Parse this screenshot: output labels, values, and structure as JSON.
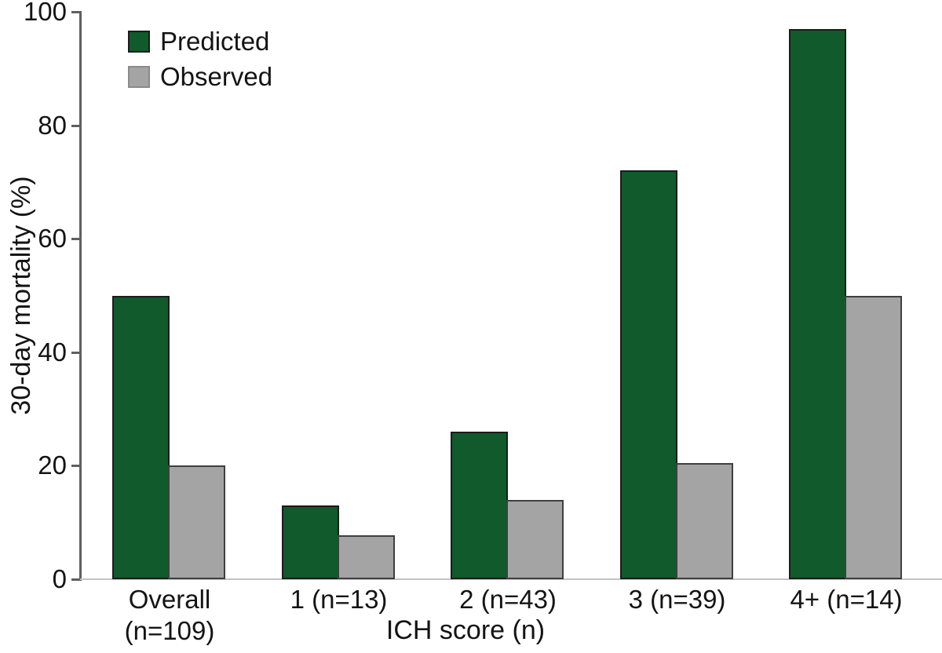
{
  "chart_data": {
    "type": "bar",
    "title": "",
    "xlabel": "ICH score (n)",
    "ylabel": "30-day mortality (%)",
    "ylim": [
      0,
      100
    ],
    "yticks": [
      0,
      20,
      40,
      60,
      80,
      100
    ],
    "grid": false,
    "legend_position": "top-left",
    "categories": [
      "Overall (n=109)",
      "1 (n=13)",
      "2 (n=43)",
      "3 (n=39)",
      "4+ (n=14)"
    ],
    "category_label_lines": [
      [
        "Overall",
        "(n=109)"
      ],
      [
        "1 (n=13)"
      ],
      [
        "2 (n=43)"
      ],
      [
        "3 (n=39)"
      ],
      [
        "4+ (n=14)"
      ]
    ],
    "category_keys": [
      "overall",
      "1",
      "2",
      "3",
      "4plus"
    ],
    "series": [
      {
        "name": "Predicted",
        "color": "#105a2c",
        "border_color": "#1c1c1c",
        "legend_border_color": "#1c1c1c",
        "values": [
          50,
          13,
          26,
          72,
          97
        ]
      },
      {
        "name": "Observed",
        "color": "#a4a4a4",
        "border_color": "#3f3f3f",
        "legend_border_color": "#8a8a8a",
        "values": [
          20,
          7.7,
          14,
          20.5,
          50
        ]
      }
    ]
  },
  "colors": {
    "axis": "#5f5f5f",
    "baseline": "#c3c3c3",
    "text": "#141414",
    "background": "#ffffff"
  }
}
